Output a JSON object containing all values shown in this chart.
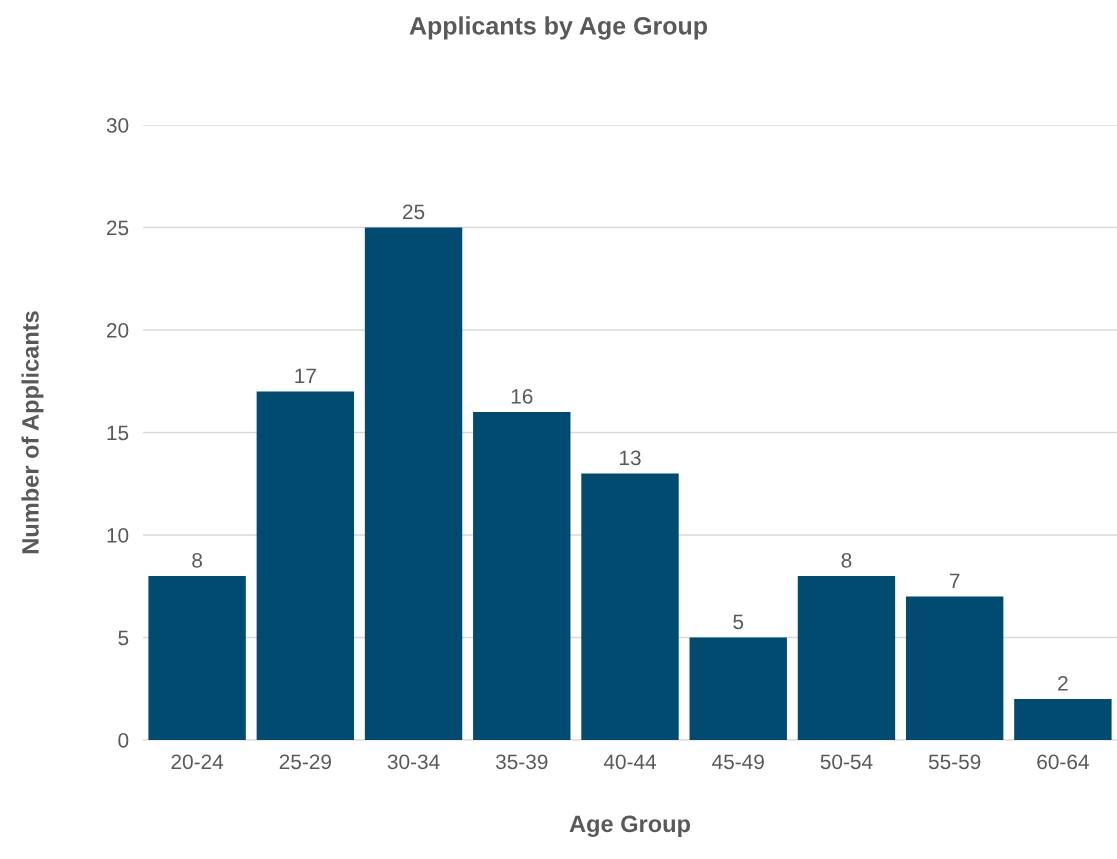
{
  "chart_data": {
    "type": "bar",
    "title": "Applicants by Age Group",
    "xlabel": "Age Group",
    "ylabel": "Number of Applicants",
    "categories": [
      "20-24",
      "25-29",
      "30-34",
      "35-39",
      "40-44",
      "45-49",
      "50-54",
      "55-59",
      "60-64"
    ],
    "values": [
      8,
      17,
      25,
      16,
      13,
      5,
      8,
      7,
      2
    ],
    "color": "#004b6f",
    "ylim": [
      0,
      30
    ],
    "yticks": [
      0,
      5,
      10,
      15,
      20,
      25,
      30
    ],
    "grid": "y",
    "data_labels": true
  }
}
